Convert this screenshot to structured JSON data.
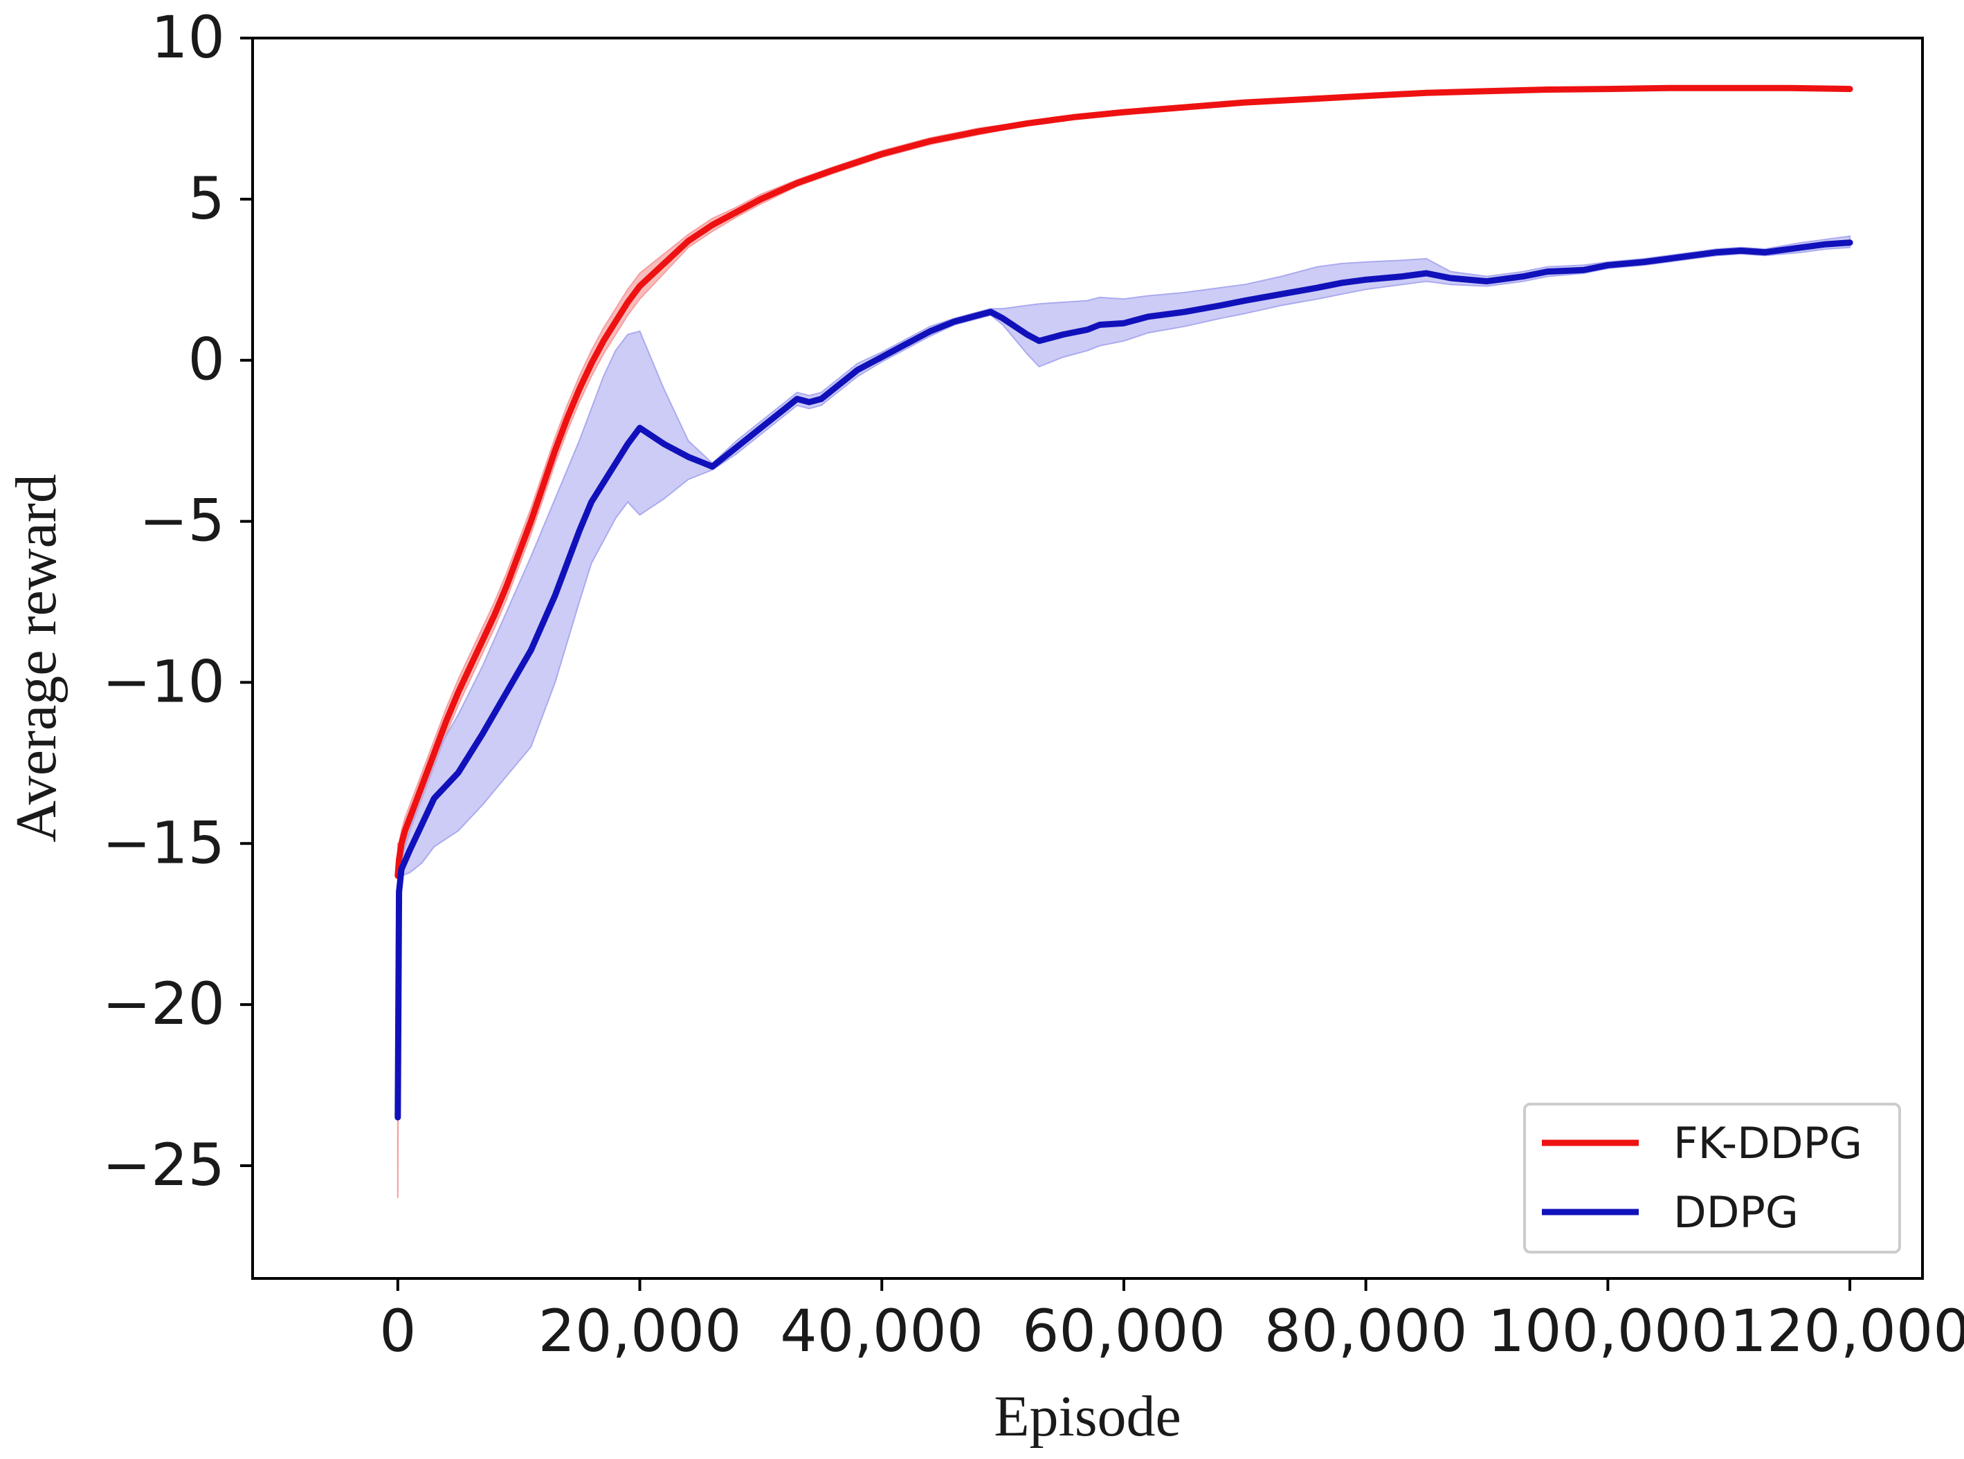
{
  "chart_data": {
    "type": "line",
    "xlabel": "Episode",
    "ylabel": "Average reward",
    "xlim": [
      -12000,
      126000
    ],
    "ylim": [
      -28.5,
      10
    ],
    "x_ticks": [
      0,
      20000,
      40000,
      60000,
      80000,
      100000,
      120000
    ],
    "x_tick_labels": [
      "0",
      "20,000",
      "40,000",
      "60,000",
      "80,000",
      "100,000",
      "120,000"
    ],
    "y_ticks": [
      10,
      5,
      0,
      -5,
      -10,
      -15,
      -20,
      -25
    ],
    "y_tick_labels": [
      "10",
      "5",
      "0",
      "−5",
      "−10",
      "−15",
      "−20",
      "−25"
    ],
    "grid": false,
    "legend_position": "bottom-right",
    "series": [
      {
        "name": "FK-DDPG",
        "color": "#ee1111",
        "band_color": "#f5a0a0",
        "x": [
          0,
          100,
          300,
          600,
          1000,
          1500,
          2000,
          3000,
          4000,
          5000,
          6000,
          7000,
          8000,
          9000,
          10000,
          11000,
          12000,
          13000,
          14000,
          15000,
          16000,
          17000,
          18000,
          19000,
          20000,
          22000,
          24000,
          26000,
          28000,
          30000,
          33000,
          36000,
          40000,
          44000,
          48000,
          52000,
          56000,
          60000,
          65000,
          70000,
          75000,
          80000,
          85000,
          90000,
          95000,
          100000,
          105000,
          110000,
          115000,
          120000
        ],
        "mean": [
          -16,
          -15.5,
          -15,
          -14.6,
          -14.2,
          -13.7,
          -13.2,
          -12.2,
          -11.2,
          -10.3,
          -9.5,
          -8.7,
          -7.9,
          -7.0,
          -6.0,
          -5.0,
          -3.9,
          -2.8,
          -1.8,
          -0.9,
          -0.1,
          0.6,
          1.2,
          1.8,
          2.3,
          3.0,
          3.7,
          4.2,
          4.6,
          5.0,
          5.5,
          5.9,
          6.4,
          6.8,
          7.1,
          7.35,
          7.55,
          7.7,
          7.85,
          8.0,
          8.1,
          8.2,
          8.3,
          8.35,
          8.4,
          8.42,
          8.45,
          8.45,
          8.45,
          8.42
        ],
        "lower": [
          -26,
          -16.2,
          -15.4,
          -15.0,
          -14.6,
          -14.1,
          -13.6,
          -12.6,
          -11.6,
          -10.7,
          -9.9,
          -9.1,
          -8.3,
          -7.4,
          -6.4,
          -5.4,
          -4.3,
          -3.2,
          -2.2,
          -1.3,
          -0.5,
          0.2,
          0.8,
          1.4,
          1.9,
          2.7,
          3.5,
          4.0,
          4.45,
          4.85,
          5.4,
          5.8,
          6.3,
          6.7,
          7.0,
          7.3,
          7.5,
          7.65,
          7.8,
          7.95,
          8.05,
          8.15,
          8.25,
          8.3,
          8.35,
          8.37,
          8.4,
          8.4,
          8.4,
          8.37
        ],
        "upper": [
          -15,
          -15.0,
          -14.6,
          -14.2,
          -13.8,
          -13.3,
          -12.8,
          -11.8,
          -10.8,
          -9.9,
          -9.1,
          -8.3,
          -7.5,
          -6.6,
          -5.6,
          -4.6,
          -3.5,
          -2.4,
          -1.4,
          -0.5,
          0.3,
          1.0,
          1.6,
          2.2,
          2.7,
          3.3,
          3.9,
          4.4,
          4.75,
          5.15,
          5.6,
          6.0,
          6.5,
          6.9,
          7.2,
          7.4,
          7.6,
          7.75,
          7.9,
          8.05,
          8.15,
          8.25,
          8.35,
          8.4,
          8.45,
          8.47,
          8.5,
          8.5,
          8.5,
          8.47
        ]
      },
      {
        "name": "DDPG",
        "color": "#1111bb",
        "band_color": "#aaaaf0",
        "x": [
          0,
          100,
          300,
          1000,
          2000,
          3000,
          5000,
          7000,
          9000,
          11000,
          13000,
          15000,
          16000,
          17000,
          18000,
          19000,
          20000,
          22000,
          24000,
          26000,
          28000,
          30000,
          32000,
          33000,
          34000,
          35000,
          36000,
          38000,
          40000,
          42000,
          44000,
          46000,
          48000,
          49000,
          50000,
          52000,
          53000,
          55000,
          57000,
          58000,
          60000,
          62000,
          65000,
          68000,
          70000,
          73000,
          76000,
          78000,
          80000,
          83000,
          85000,
          87000,
          90000,
          93000,
          95000,
          98000,
          100000,
          103000,
          106000,
          109000,
          111000,
          113000,
          116000,
          118000,
          120000
        ],
        "mean": [
          -23.5,
          -16.5,
          -15.8,
          -15.2,
          -14.4,
          -13.6,
          -12.8,
          -11.6,
          -10.3,
          -9.0,
          -7.3,
          -5.3,
          -4.4,
          -3.8,
          -3.2,
          -2.6,
          -2.1,
          -2.6,
          -3.0,
          -3.3,
          -2.7,
          -2.1,
          -1.5,
          -1.2,
          -1.3,
          -1.2,
          -0.9,
          -0.3,
          0.1,
          0.5,
          0.9,
          1.2,
          1.4,
          1.5,
          1.3,
          0.8,
          0.6,
          0.8,
          0.95,
          1.1,
          1.15,
          1.35,
          1.5,
          1.7,
          1.85,
          2.05,
          2.25,
          2.4,
          2.5,
          2.6,
          2.7,
          2.55,
          2.45,
          2.6,
          2.75,
          2.8,
          2.95,
          3.05,
          3.2,
          3.35,
          3.4,
          3.35,
          3.5,
          3.6,
          3.65
        ],
        "lower": [
          -23.5,
          -16.8,
          -16.0,
          -15.9,
          -15.6,
          -15.1,
          -14.6,
          -13.8,
          -12.9,
          -12.0,
          -10.0,
          -7.5,
          -6.3,
          -5.6,
          -4.9,
          -4.4,
          -4.8,
          -4.3,
          -3.7,
          -3.4,
          -2.9,
          -2.3,
          -1.7,
          -1.4,
          -1.5,
          -1.4,
          -1.1,
          -0.5,
          -0.05,
          0.35,
          0.75,
          1.1,
          1.3,
          1.4,
          1.1,
          0.2,
          -0.2,
          0.1,
          0.3,
          0.45,
          0.6,
          0.85,
          1.05,
          1.3,
          1.45,
          1.7,
          1.9,
          2.05,
          2.2,
          2.35,
          2.45,
          2.35,
          2.3,
          2.45,
          2.6,
          2.7,
          2.85,
          2.95,
          3.1,
          3.25,
          3.3,
          3.25,
          3.35,
          3.45,
          3.5
        ],
        "upper": [
          -23.5,
          -16.2,
          -15.5,
          -14.6,
          -13.3,
          -12.3,
          -11.0,
          -9.5,
          -7.8,
          -6.1,
          -4.3,
          -2.5,
          -1.5,
          -0.5,
          0.3,
          0.8,
          0.9,
          -0.9,
          -2.5,
          -3.2,
          -2.5,
          -1.9,
          -1.3,
          -1.0,
          -1.1,
          -1.0,
          -0.7,
          -0.1,
          0.25,
          0.65,
          1.05,
          1.3,
          1.5,
          1.6,
          1.6,
          1.7,
          1.75,
          1.8,
          1.85,
          1.95,
          1.9,
          2.0,
          2.1,
          2.25,
          2.35,
          2.6,
          2.9,
          3.0,
          3.05,
          3.1,
          3.15,
          2.75,
          2.6,
          2.75,
          2.9,
          2.95,
          3.05,
          3.15,
          3.3,
          3.45,
          3.5,
          3.45,
          3.65,
          3.75,
          3.85
        ]
      }
    ]
  }
}
